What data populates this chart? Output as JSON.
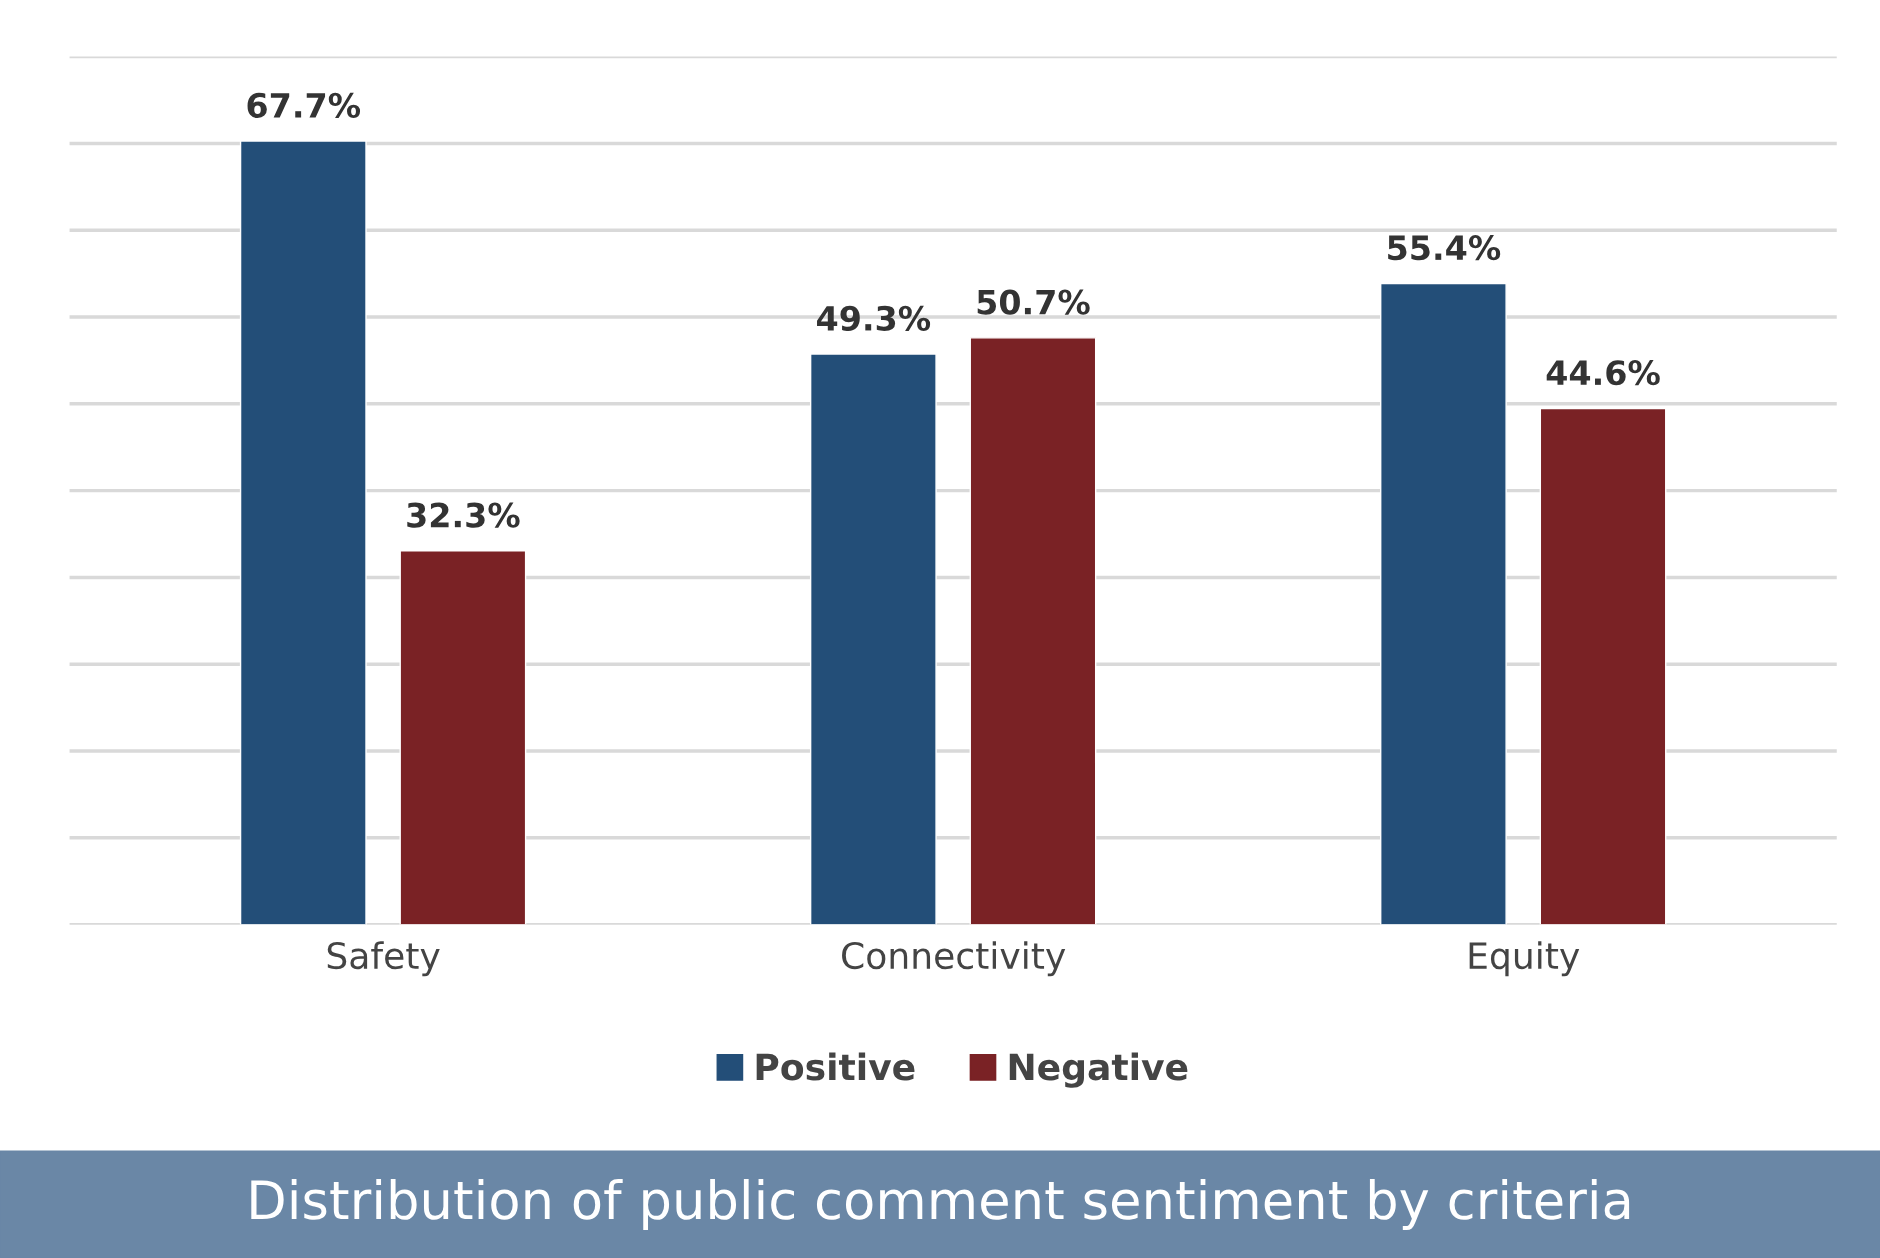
{
  "chart_data": {
    "type": "bar",
    "title": "Distribution of public comment sentiment by criteria",
    "categories": [
      "Safety",
      "Connectivity",
      "Equity"
    ],
    "series": [
      {
        "name": "Positive",
        "color": "#234e78",
        "values": [
          67.7,
          49.3,
          55.4
        ],
        "value_labels": [
          "67.7%",
          "49.3%",
          "55.4%"
        ]
      },
      {
        "name": "Negative",
        "color": "#7a2225",
        "values": [
          32.3,
          50.7,
          44.6
        ],
        "value_labels": [
          "32.3%",
          "50.7%",
          "44.6%"
        ]
      }
    ],
    "ylim": [
      0,
      75
    ],
    "yticks": [
      {
        "value": 0,
        "label": null
      },
      {
        "value": 7.5,
        "label": null
      },
      {
        "value": 15,
        "label": null
      },
      {
        "value": 22.5,
        "label": null
      },
      {
        "value": 30,
        "label": null
      },
      {
        "value": 37.5,
        "label": null
      },
      {
        "value": 45,
        "label": null
      },
      {
        "value": 52.5,
        "label": null
      },
      {
        "value": 60,
        "label": null
      },
      {
        "value": 67.5,
        "label": null
      },
      {
        "value": 75,
        "label": null
      }
    ],
    "grid": "y",
    "legend": "bottom",
    "tick_labels": "x"
  }
}
